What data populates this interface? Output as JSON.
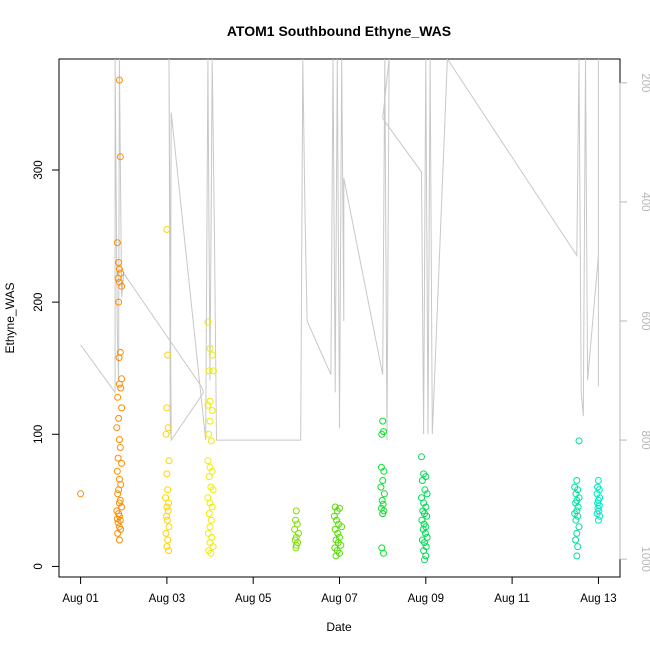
{
  "chart_data": {
    "type": "scatter",
    "title": "ATOM1 Southbound Ethyne_WAS",
    "xlabel": "Date",
    "ylabel": "Ethyne_WAS",
    "x_unit": "days (Aug 01 = 0)",
    "xlim": [
      -0.5,
      12.5
    ],
    "ylim": [
      -8,
      384
    ],
    "x_ticks": [
      {
        "value": 0,
        "label": "Aug 01"
      },
      {
        "value": 2,
        "label": "Aug 03"
      },
      {
        "value": 4,
        "label": "Aug 05"
      },
      {
        "value": 6,
        "label": "Aug 07"
      },
      {
        "value": 8,
        "label": "Aug 09"
      },
      {
        "value": 10,
        "label": "Aug 11"
      },
      {
        "value": 12,
        "label": "Aug 13"
      }
    ],
    "y_ticks": [
      0,
      100,
      200,
      300
    ],
    "y2": {
      "color": "#b8b8b8",
      "ylim": [
        1030,
        160
      ],
      "reversed": true,
      "ticks": [
        200,
        400,
        600,
        800,
        1000
      ],
      "line_color": "#c8c8c8",
      "line_points": [
        [
          0,
          640
        ],
        [
          0.8,
          720
        ],
        [
          0.8,
          160
        ],
        [
          0.85,
          620
        ],
        [
          0.88,
          700
        ],
        [
          0.9,
          160
        ],
        [
          0.95,
          560
        ],
        [
          1,
          520
        ],
        [
          2.8,
          710
        ],
        [
          2.85,
          720
        ],
        [
          2.1,
          800
        ],
        [
          2.05,
          160
        ],
        [
          2.08,
          790
        ],
        [
          2.1,
          250
        ],
        [
          2.9,
          800
        ],
        [
          2.95,
          160
        ],
        [
          3.0,
          700
        ],
        [
          3.05,
          160
        ],
        [
          3.1,
          450
        ],
        [
          3.15,
          800
        ],
        [
          5.1,
          800
        ],
        [
          5.15,
          160
        ],
        [
          5.2,
          420
        ],
        [
          5.25,
          600
        ],
        [
          5.8,
          690
        ],
        [
          5.85,
          160
        ],
        [
          5.9,
          720
        ],
        [
          5.95,
          160
        ],
        [
          6.0,
          780
        ],
        [
          6.05,
          160
        ],
        [
          6.1,
          600
        ],
        [
          6.1,
          360
        ],
        [
          7.0,
          690
        ],
        [
          7.05,
          160
        ],
        [
          7.1,
          800
        ],
        [
          7.15,
          160
        ],
        [
          7.0,
          260
        ],
        [
          7.9,
          350
        ],
        [
          7.95,
          790
        ],
        [
          8.0,
          160
        ],
        [
          8.05,
          790
        ],
        [
          8.1,
          160
        ],
        [
          8.15,
          790
        ],
        [
          8.5,
          160
        ],
        [
          11.5,
          490
        ],
        [
          11.55,
          160
        ],
        [
          11.6,
          720
        ],
        [
          11.65,
          760
        ],
        [
          11.7,
          160
        ],
        [
          11.75,
          700
        ],
        [
          12.0,
          490
        ],
        [
          12.0,
          160
        ],
        [
          12.0,
          710
        ]
      ]
    },
    "series": [
      {
        "color": "#ff8c00",
        "points": [
          [
            0,
            55
          ],
          [
            0.9,
            368
          ],
          [
            0.92,
            310
          ],
          [
            0.85,
            245
          ],
          [
            0.88,
            230
          ],
          [
            0.9,
            225
          ],
          [
            0.93,
            222
          ],
          [
            0.87,
            218
          ],
          [
            0.9,
            215
          ],
          [
            0.95,
            212
          ],
          [
            0.88,
            200
          ],
          [
            0.92,
            162
          ],
          [
            0.89,
            158
          ],
          [
            0.95,
            142
          ],
          [
            0.9,
            138
          ],
          [
            0.93,
            135
          ],
          [
            0.86,
            128
          ],
          [
            0.95,
            120
          ],
          [
            0.88,
            112
          ],
          [
            0.84,
            105
          ],
          [
            0.9,
            96
          ],
          [
            0.92,
            90
          ],
          [
            0.87,
            82
          ],
          [
            0.95,
            78
          ],
          [
            0.85,
            72
          ],
          [
            0.9,
            66
          ],
          [
            0.93,
            62
          ],
          [
            0.88,
            58
          ],
          [
            0.86,
            55
          ],
          [
            0.92,
            50
          ],
          [
            0.9,
            48
          ],
          [
            0.95,
            45
          ],
          [
            0.84,
            42
          ],
          [
            0.88,
            40
          ],
          [
            0.9,
            38
          ],
          [
            0.85,
            36
          ],
          [
            0.92,
            35
          ],
          [
            0.87,
            33
          ],
          [
            0.9,
            30
          ],
          [
            0.93,
            28
          ],
          [
            0.86,
            25
          ],
          [
            0.9,
            20
          ]
        ]
      },
      {
        "color": "#ffd400",
        "points": [
          [
            2.0,
            255
          ],
          [
            2.02,
            160
          ],
          [
            2.0,
            120
          ],
          [
            2.03,
            105
          ],
          [
            1.98,
            100
          ],
          [
            2.05,
            80
          ],
          [
            2.0,
            70
          ],
          [
            2.02,
            58
          ],
          [
            1.97,
            52
          ],
          [
            2.04,
            48
          ],
          [
            2.0,
            45
          ],
          [
            2.03,
            42
          ],
          [
            1.99,
            38
          ],
          [
            2.01,
            35
          ],
          [
            2.05,
            30
          ],
          [
            1.98,
            25
          ],
          [
            2.02,
            20
          ],
          [
            2.0,
            15
          ],
          [
            2.04,
            12
          ]
        ]
      },
      {
        "color": "#eeee00",
        "points": [
          [
            2.95,
            185
          ],
          [
            3.0,
            165
          ],
          [
            3.05,
            160
          ],
          [
            2.98,
            148
          ],
          [
            3.08,
            148
          ],
          [
            3.0,
            125
          ],
          [
            2.95,
            122
          ],
          [
            3.05,
            118
          ],
          [
            3.0,
            110
          ],
          [
            2.97,
            100
          ],
          [
            3.03,
            95
          ],
          [
            2.95,
            80
          ],
          [
            3.0,
            75
          ],
          [
            3.05,
            72
          ],
          [
            2.98,
            68
          ],
          [
            3.02,
            60
          ],
          [
            3.07,
            58
          ],
          [
            2.95,
            52
          ],
          [
            3.0,
            48
          ],
          [
            3.05,
            45
          ],
          [
            2.98,
            40
          ],
          [
            3.03,
            35
          ],
          [
            3.0,
            30
          ],
          [
            2.96,
            25
          ],
          [
            3.04,
            22
          ],
          [
            3.0,
            18
          ],
          [
            3.07,
            15
          ],
          [
            2.97,
            12
          ],
          [
            3.02,
            10
          ]
        ]
      },
      {
        "color": "#7fe000",
        "points": [
          [
            5.0,
            42
          ],
          [
            4.98,
            35
          ],
          [
            5.02,
            32
          ],
          [
            4.96,
            28
          ],
          [
            5.05,
            25
          ],
          [
            5.0,
            22
          ],
          [
            4.97,
            20
          ],
          [
            5.03,
            18
          ],
          [
            5.0,
            16
          ],
          [
            4.99,
            14
          ]
        ]
      },
      {
        "color": "#55dd00",
        "points": [
          [
            5.9,
            45
          ],
          [
            5.95,
            42
          ],
          [
            6.0,
            44
          ],
          [
            5.88,
            38
          ],
          [
            5.93,
            35
          ],
          [
            5.98,
            32
          ],
          [
            6.05,
            30
          ],
          [
            5.9,
            28
          ],
          [
            5.96,
            25
          ],
          [
            6.0,
            22
          ],
          [
            5.92,
            20
          ],
          [
            5.97,
            18
          ],
          [
            6.03,
            16
          ],
          [
            5.89,
            14
          ],
          [
            5.95,
            12
          ],
          [
            6.0,
            10
          ],
          [
            5.92,
            8
          ]
        ]
      },
      {
        "color": "#11dd33",
        "points": [
          [
            7.0,
            110
          ],
          [
            6.98,
            100
          ],
          [
            7.02,
            102
          ],
          [
            6.97,
            75
          ],
          [
            7.03,
            72
          ],
          [
            7.0,
            65
          ],
          [
            6.96,
            60
          ],
          [
            7.04,
            55
          ],
          [
            6.99,
            50
          ],
          [
            7.01,
            47
          ],
          [
            6.97,
            44
          ],
          [
            7.03,
            42
          ],
          [
            7.0,
            40
          ],
          [
            6.98,
            14
          ],
          [
            7.02,
            10
          ]
        ]
      },
      {
        "color": "#00dd55",
        "points": [
          [
            7.9,
            83
          ],
          [
            7.95,
            70
          ],
          [
            8.0,
            68
          ],
          [
            7.92,
            65
          ],
          [
            7.98,
            58
          ],
          [
            8.03,
            55
          ],
          [
            7.9,
            52
          ],
          [
            7.95,
            48
          ],
          [
            8.0,
            45
          ],
          [
            7.93,
            42
          ],
          [
            7.97,
            40
          ],
          [
            8.02,
            38
          ],
          [
            7.91,
            35
          ],
          [
            7.96,
            32
          ],
          [
            8.0,
            30
          ],
          [
            7.94,
            28
          ],
          [
            7.99,
            25
          ],
          [
            8.03,
            22
          ],
          [
            7.92,
            20
          ],
          [
            7.97,
            18
          ],
          [
            8.01,
            15
          ],
          [
            7.95,
            12
          ],
          [
            8.0,
            8
          ],
          [
            7.97,
            5
          ]
        ]
      },
      {
        "color": "#00e0a0",
        "points": [
          [
            11.55,
            95
          ],
          [
            11.5,
            65
          ],
          [
            11.45,
            60
          ],
          [
            11.52,
            58
          ],
          [
            11.48,
            55
          ],
          [
            11.55,
            52
          ],
          [
            11.5,
            50
          ],
          [
            11.47,
            48
          ],
          [
            11.53,
            45
          ],
          [
            11.5,
            42
          ],
          [
            11.45,
            40
          ],
          [
            11.52,
            38
          ],
          [
            11.48,
            35
          ],
          [
            11.55,
            30
          ],
          [
            11.5,
            25
          ],
          [
            11.47,
            20
          ],
          [
            11.52,
            15
          ],
          [
            11.5,
            8
          ]
        ]
      },
      {
        "color": "#00e8c0",
        "points": [
          [
            12.0,
            65
          ],
          [
            11.98,
            60
          ],
          [
            12.02,
            58
          ],
          [
            11.97,
            55
          ],
          [
            12.03,
            52
          ],
          [
            12.0,
            50
          ],
          [
            11.98,
            48
          ],
          [
            12.02,
            46
          ],
          [
            11.99,
            44
          ],
          [
            12.01,
            42
          ],
          [
            11.97,
            40
          ],
          [
            12.03,
            38
          ],
          [
            12.0,
            35
          ]
        ]
      }
    ]
  }
}
